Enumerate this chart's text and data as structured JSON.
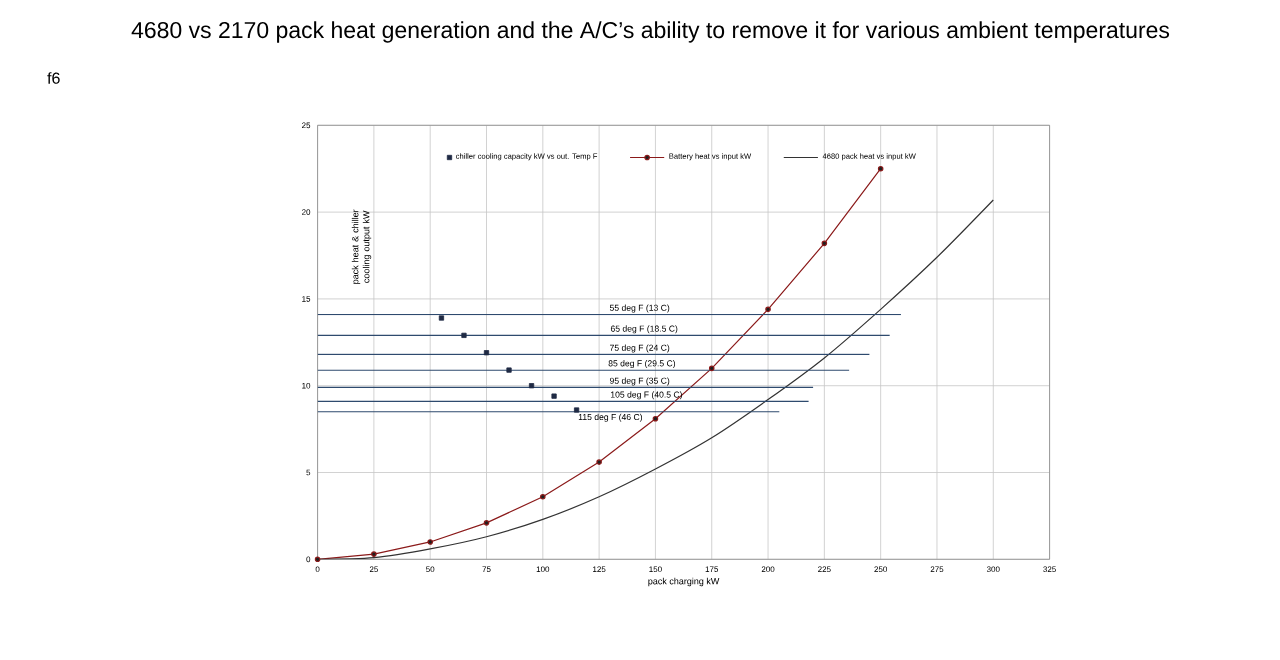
{
  "chart_data": {
    "type": "line",
    "title": "4680 vs 2170 pack heat generation and the A/C’s ability to remove it for various ambient temperatures",
    "subtitle": "f6",
    "xlabel": "pack charging kW",
    "ylabel": "pack heat & chiller cooling output kW",
    "xlim": [
      0,
      325
    ],
    "xticks": [
      0,
      25,
      50,
      75,
      100,
      125,
      150,
      175,
      200,
      225,
      250,
      275,
      300,
      325
    ],
    "ylim": [
      0,
      25
    ],
    "yticks": [
      0,
      5,
      10,
      15,
      20,
      25
    ],
    "grid": true,
    "legend": "top",
    "series": [
      {
        "name": "chiller cooling capacity kW vs out. Temp F",
        "type": "scatter",
        "marker": "square",
        "color": "#1f2a44",
        "x": [
          55,
          65,
          75,
          85,
          95,
          105,
          115
        ],
        "values": [
          13.9,
          12.9,
          11.9,
          10.9,
          10.0,
          9.4,
          8.6
        ]
      },
      {
        "name": "Battery heat vs input kW",
        "marker": "circle",
        "color": "#8b1a1a",
        "x": [
          0,
          25,
          50,
          75,
          100,
          125,
          150,
          175,
          200,
          225,
          250
        ],
        "values": [
          0,
          0.3,
          1.0,
          2.1,
          3.6,
          5.6,
          8.1,
          11.0,
          14.4,
          18.2,
          22.5
        ]
      },
      {
        "name": "4680 pack heat vs input kW",
        "marker": "none",
        "color": "#333333",
        "x": [
          0,
          25,
          50,
          75,
          100,
          125,
          150,
          175,
          200,
          225,
          250,
          275,
          300
        ],
        "values": [
          0,
          0.1,
          0.6,
          1.3,
          2.3,
          3.6,
          5.2,
          7.0,
          9.2,
          11.6,
          14.4,
          17.4,
          20.7
        ]
      },
      {
        "type": "line",
        "marker": "none",
        "color": "#2e4a6e",
        "x": [
          0,
          259
        ],
        "values": [
          14.1,
          14.1
        ]
      },
      {
        "type": "line",
        "marker": "none",
        "color": "#2e4a6e",
        "x": [
          0,
          254
        ],
        "values": [
          12.9,
          12.9
        ]
      },
      {
        "type": "line",
        "marker": "none",
        "color": "#2e4a6e",
        "x": [
          0,
          245
        ],
        "values": [
          11.8,
          11.8
        ]
      },
      {
        "type": "line",
        "marker": "none",
        "color": "#2e4a6e",
        "x": [
          0,
          236
        ],
        "values": [
          10.9,
          10.9
        ]
      },
      {
        "type": "line",
        "marker": "none",
        "color": "#2e4a6e",
        "x": [
          0,
          220
        ],
        "values": [
          9.9,
          9.9
        ]
      },
      {
        "type": "line",
        "marker": "none",
        "color": "#2e4a6e",
        "x": [
          0,
          218
        ],
        "values": [
          9.1,
          9.1
        ]
      },
      {
        "type": "line",
        "marker": "none",
        "color": "#2e4a6e",
        "x": [
          0,
          205
        ],
        "values": [
          8.5,
          8.5
        ]
      }
    ],
    "annotations": [
      {
        "text": "55 deg F (13 C)",
        "x": 143,
        "y": 14.1
      },
      {
        "text": "65 deg F (18.5 C)",
        "x": 145,
        "y": 12.9
      },
      {
        "text": "75 deg F (24 C)",
        "x": 143,
        "y": 11.8
      },
      {
        "text": "85 deg F (29.5 C)",
        "x": 144,
        "y": 10.9
      },
      {
        "text": "95 deg F (35 C)",
        "x": 143,
        "y": 9.9
      },
      {
        "text": "105 deg F (40.5 C)",
        "x": 146,
        "y": 9.1
      },
      {
        "text": "115 deg F (46 C)",
        "x": 130,
        "y": 8.5
      }
    ]
  }
}
